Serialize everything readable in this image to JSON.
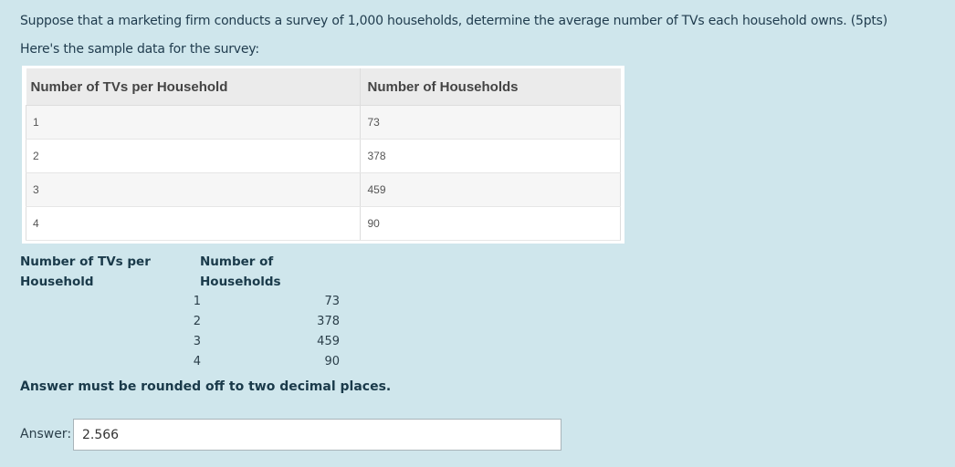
{
  "question": {
    "text": "Suppose that a marketing firm conducts a survey of 1,000 households, determine the average number of TVs each household owns. (5pts)",
    "intro": "Here's the sample data for the survey:"
  },
  "survey_table": {
    "headers": [
      "Number of TVs per Household",
      "Number of Households"
    ],
    "rows": [
      [
        "1",
        "73"
      ],
      [
        "2",
        "378"
      ],
      [
        "3",
        "459"
      ],
      [
        "4",
        "90"
      ]
    ]
  },
  "mini_table": {
    "header_col1": "Number of TVs per Household",
    "header_col2": "Number of Households",
    "rows": [
      [
        "1",
        "73"
      ],
      [
        "2",
        "378"
      ],
      [
        "3",
        "459"
      ],
      [
        "4",
        "90"
      ]
    ]
  },
  "note": "Answer must be rounded off to two decimal places.",
  "answer": {
    "label": "Answer:",
    "value": "2.566"
  },
  "colors": {
    "background": "#cfe6ec",
    "table_header": "#ebebeb",
    "text": "#1c3a4a"
  }
}
